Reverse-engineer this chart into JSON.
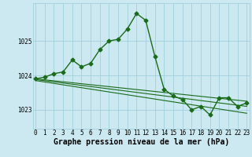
{
  "xlabel": "Graphe pression niveau de la mer (hPa)",
  "hours": [
    0,
    1,
    2,
    3,
    4,
    5,
    6,
    7,
    8,
    9,
    10,
    11,
    12,
    13,
    14,
    15,
    16,
    17,
    18,
    19,
    20,
    21,
    22,
    23
  ],
  "line1": [
    1023.9,
    1023.95,
    1024.05,
    1024.1,
    1024.45,
    1024.25,
    1024.35,
    1024.75,
    1025.0,
    1025.05,
    1025.35,
    1025.8,
    1025.6,
    1024.55,
    1023.6,
    1023.4,
    1023.3,
    1023.0,
    1023.1,
    1022.85,
    1023.35,
    1023.35,
    1023.1,
    1023.2
  ],
  "trend_lines": [
    {
      "x0": 0,
      "y0": 1023.9,
      "x1": 23,
      "y1": 1023.25
    },
    {
      "x0": 0,
      "y0": 1023.88,
      "x1": 23,
      "y1": 1023.1
    },
    {
      "x0": 0,
      "y0": 1023.85,
      "x1": 23,
      "y1": 1022.9
    }
  ],
  "bg_color": "#cce8f0",
  "grid_color": "#99ccd8",
  "line_color": "#1a6b1a",
  "yticks": [
    1023,
    1024,
    1025
  ],
  "ylim": [
    1022.45,
    1026.1
  ],
  "xlim": [
    -0.3,
    23.3
  ],
  "marker": "D",
  "markersize": 2.5,
  "linewidth": 1.0,
  "trend_linewidth": 0.8,
  "xlabel_fontsize": 7.0,
  "tick_fontsize": 5.5
}
